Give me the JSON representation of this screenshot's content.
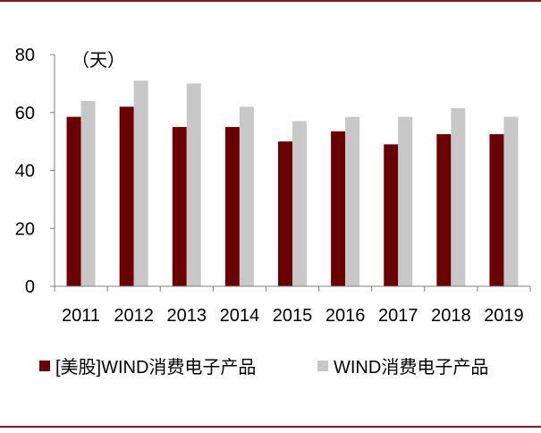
{
  "chart_data": {
    "type": "bar",
    "unit_label": "（天）",
    "categories": [
      "2011",
      "2012",
      "2013",
      "2014",
      "2015",
      "2016",
      "2017",
      "2018",
      "2019"
    ],
    "series": [
      {
        "name": "[美股]WIND消费电子产品",
        "color": "#6B0000",
        "values": [
          58.5,
          62,
          55,
          55,
          50,
          53.5,
          49,
          52.5,
          52.5
        ]
      },
      {
        "name": "WIND消费电子产品",
        "color": "#C8C8C8",
        "values": [
          64,
          71,
          70,
          62,
          57,
          58.5,
          58.5,
          61.5,
          58.5
        ]
      }
    ],
    "ylim": [
      0,
      80
    ],
    "yticks": [
      "0",
      "20",
      "40",
      "60",
      "80"
    ],
    "grid": false,
    "legend_position": "bottom",
    "frame_color": "#8B1A1A"
  }
}
